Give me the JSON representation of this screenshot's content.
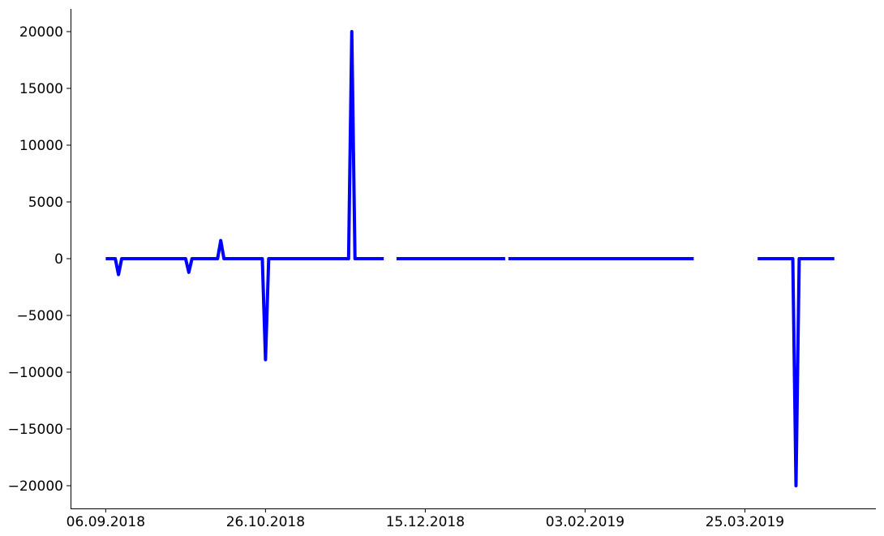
{
  "chart_data": {
    "type": "line",
    "title": "",
    "xlabel": "",
    "ylabel": "",
    "x_axis": {
      "type": "date",
      "range": [
        "2018-08-26",
        "2019-05-05"
      ],
      "ticks": [
        {
          "date": "2018-09-06",
          "label": "06.09.2018"
        },
        {
          "date": "2018-10-26",
          "label": "26.10.2018"
        },
        {
          "date": "2018-12-15",
          "label": "15.12.2018"
        },
        {
          "date": "2019-02-03",
          "label": "03.02.2019"
        },
        {
          "date": "2019-03-25",
          "label": "25.03.2019"
        }
      ]
    },
    "y_axis": {
      "range": [
        -22000,
        22000
      ],
      "ticks": [
        {
          "value": 20000,
          "label": "20000"
        },
        {
          "value": 15000,
          "label": "15000"
        },
        {
          "value": 10000,
          "label": "10000"
        },
        {
          "value": 5000,
          "label": "5000"
        },
        {
          "value": 0,
          "label": "0"
        },
        {
          "value": -5000,
          "label": "−5000"
        },
        {
          "value": -10000,
          "label": "−10000"
        },
        {
          "value": -15000,
          "label": "−15000"
        },
        {
          "value": -20000,
          "label": "−20000"
        }
      ]
    },
    "grid": false,
    "series": [
      {
        "color": "#0000ff",
        "segments": [
          [
            {
              "x": "2018-09-06",
              "y": 0
            },
            {
              "x": "2018-09-09",
              "y": 0
            },
            {
              "x": "2018-09-10",
              "y": -1400
            },
            {
              "x": "2018-09-11",
              "y": 0
            },
            {
              "x": "2018-10-01",
              "y": 0
            },
            {
              "x": "2018-10-02",
              "y": -1200
            },
            {
              "x": "2018-10-03",
              "y": 0
            },
            {
              "x": "2018-10-11",
              "y": 0
            },
            {
              "x": "2018-10-12",
              "y": 1600
            },
            {
              "x": "2018-10-13",
              "y": 0
            },
            {
              "x": "2018-10-25",
              "y": 0
            },
            {
              "x": "2018-10-26",
              "y": -8900
            },
            {
              "x": "2018-10-27",
              "y": 0
            },
            {
              "x": "2018-11-21",
              "y": 0
            },
            {
              "x": "2018-11-22",
              "y": 20000
            },
            {
              "x": "2018-11-23",
              "y": 0
            },
            {
              "x": "2018-12-02",
              "y": 0
            }
          ],
          [
            {
              "x": "2018-12-06",
              "y": 0
            },
            {
              "x": "2019-01-09",
              "y": 0
            }
          ],
          [
            {
              "x": "2019-01-10",
              "y": 0
            },
            {
              "x": "2019-03-09",
              "y": 0
            }
          ],
          [
            {
              "x": "2019-03-29",
              "y": 0
            },
            {
              "x": "2019-04-09",
              "y": 0
            },
            {
              "x": "2019-04-10",
              "y": -20000
            },
            {
              "x": "2019-04-11",
              "y": 0
            },
            {
              "x": "2019-04-22",
              "y": 0
            }
          ]
        ]
      }
    ]
  }
}
